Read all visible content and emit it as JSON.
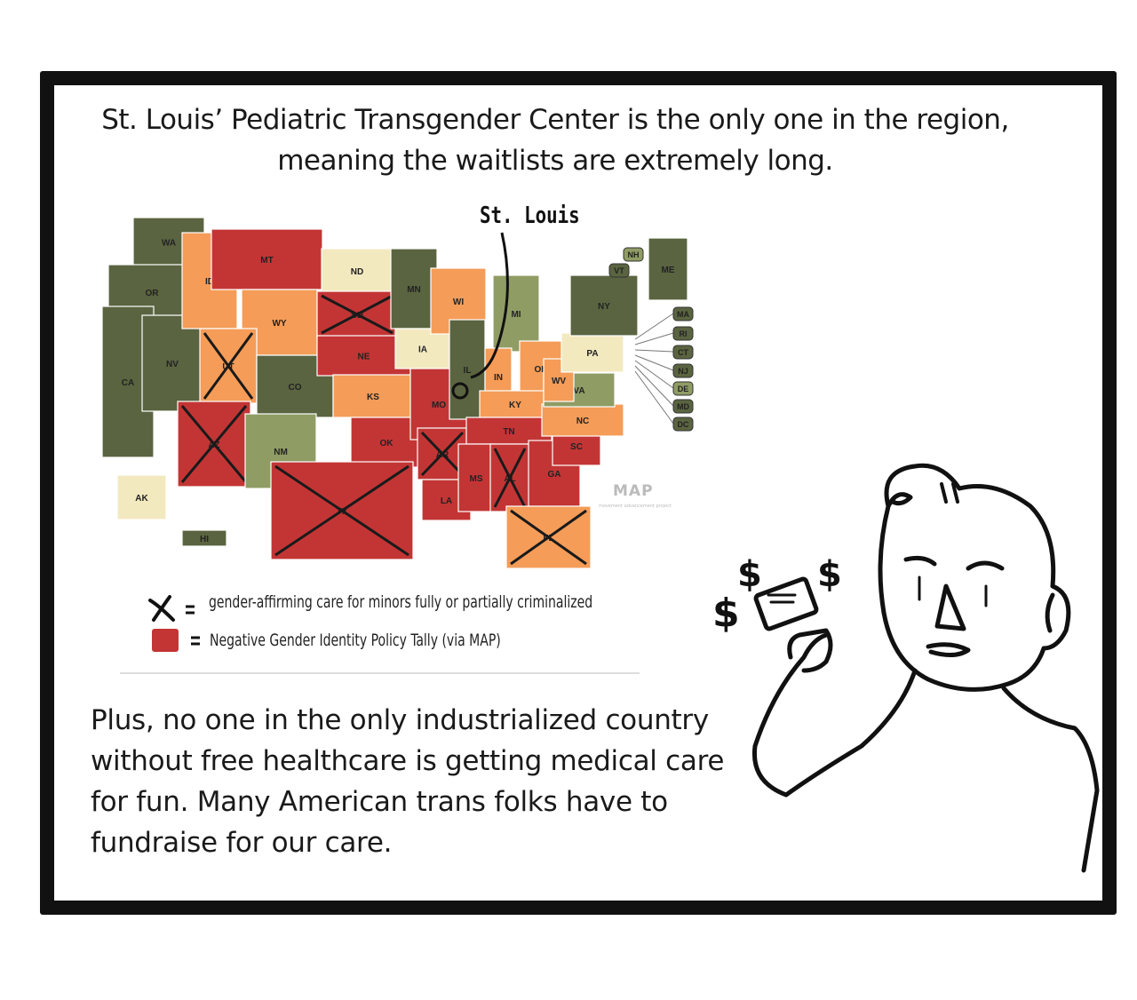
{
  "top_caption": "St. Louis’ Pediatric Transgender Center is the only one in the region, meaning the waitlists are extremely long.",
  "bottom_caption": "Plus, no one in the only industrialized country without free healthcare is getting medical care for fun. Many American trans folks have to fundraise for our care.",
  "annotation": "St. Louis",
  "map_logo": "MAP",
  "map_logo_sub": "movement advancement project",
  "legend": [
    {
      "symbol": "x-mark",
      "text": "gender-affirming care for minors fully or partially criminalized"
    },
    {
      "symbol": "red-swatch",
      "text": "Negative Gender Identity Policy Tally (via MAP)"
    }
  ],
  "colors": {
    "dark": "#5a6440",
    "light": "#8f9c64",
    "cream": "#f3e9bf",
    "orange": "#f49c58",
    "red": "#c33535",
    "frame": "#111111"
  },
  "states": [
    {
      "abbr": "WA",
      "cat": "dark"
    },
    {
      "abbr": "OR",
      "cat": "dark"
    },
    {
      "abbr": "CA",
      "cat": "dark"
    },
    {
      "abbr": "NV",
      "cat": "dark"
    },
    {
      "abbr": "ID",
      "cat": "orange"
    },
    {
      "abbr": "MT",
      "cat": "red"
    },
    {
      "abbr": "WY",
      "cat": "orange"
    },
    {
      "abbr": "UT",
      "cat": "orange",
      "crossed": true
    },
    {
      "abbr": "AZ",
      "cat": "red",
      "crossed": true
    },
    {
      "abbr": "CO",
      "cat": "dark"
    },
    {
      "abbr": "NM",
      "cat": "light"
    },
    {
      "abbr": "ND",
      "cat": "cream"
    },
    {
      "abbr": "SD",
      "cat": "red",
      "crossed": true
    },
    {
      "abbr": "NE",
      "cat": "red"
    },
    {
      "abbr": "KS",
      "cat": "orange"
    },
    {
      "abbr": "OK",
      "cat": "red"
    },
    {
      "abbr": "TX",
      "cat": "red",
      "crossed": true
    },
    {
      "abbr": "MN",
      "cat": "dark"
    },
    {
      "abbr": "IA",
      "cat": "cream"
    },
    {
      "abbr": "MO",
      "cat": "red"
    },
    {
      "abbr": "AR",
      "cat": "red",
      "crossed": true
    },
    {
      "abbr": "LA",
      "cat": "red"
    },
    {
      "abbr": "WI",
      "cat": "orange"
    },
    {
      "abbr": "IL",
      "cat": "dark"
    },
    {
      "abbr": "MI",
      "cat": "light"
    },
    {
      "abbr": "IN",
      "cat": "orange"
    },
    {
      "abbr": "OH",
      "cat": "orange"
    },
    {
      "abbr": "KY",
      "cat": "orange"
    },
    {
      "abbr": "TN",
      "cat": "red"
    },
    {
      "abbr": "MS",
      "cat": "red"
    },
    {
      "abbr": "AL",
      "cat": "red",
      "crossed": true
    },
    {
      "abbr": "GA",
      "cat": "red"
    },
    {
      "abbr": "FL",
      "cat": "orange",
      "crossed": true
    },
    {
      "abbr": "SC",
      "cat": "red"
    },
    {
      "abbr": "NC",
      "cat": "orange"
    },
    {
      "abbr": "VA",
      "cat": "light"
    },
    {
      "abbr": "WV",
      "cat": "orange"
    },
    {
      "abbr": "PA",
      "cat": "cream"
    },
    {
      "abbr": "NY",
      "cat": "dark"
    },
    {
      "abbr": "ME",
      "cat": "dark"
    },
    {
      "abbr": "AK",
      "cat": "cream"
    },
    {
      "abbr": "HI",
      "cat": "dark"
    }
  ],
  "callouts": [
    {
      "abbr": "NH",
      "cat": "light"
    },
    {
      "abbr": "VT",
      "cat": "dark"
    },
    {
      "abbr": "MA",
      "cat": "dark"
    },
    {
      "abbr": "RI",
      "cat": "dark"
    },
    {
      "abbr": "CT",
      "cat": "dark"
    },
    {
      "abbr": "NJ",
      "cat": "dark"
    },
    {
      "abbr": "DE",
      "cat": "light"
    },
    {
      "abbr": "MD",
      "cat": "dark"
    },
    {
      "abbr": "DC",
      "cat": "dark"
    }
  ]
}
